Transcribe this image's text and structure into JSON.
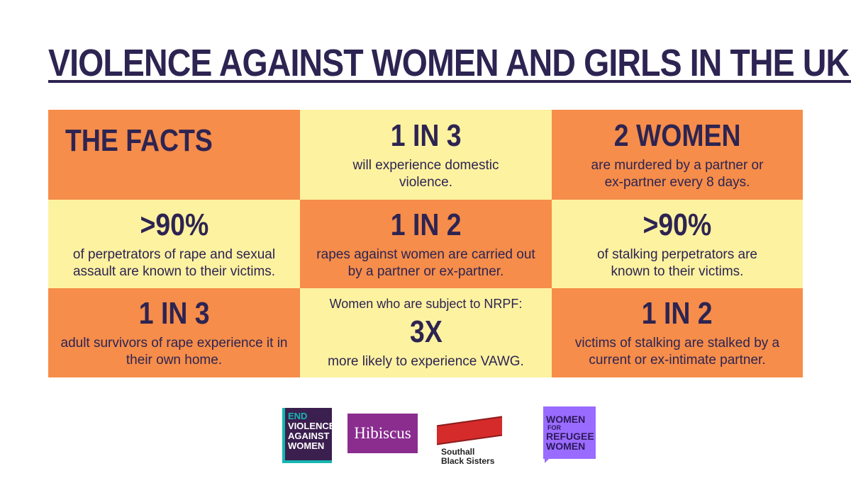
{
  "title": "VIOLENCE AGAINST WOMEN AND GIRLS  IN THE UK:",
  "facts": [
    {
      "big": "THE FACTS",
      "desc": ""
    },
    {
      "big": "1 IN 3",
      "desc": "will experience domestic violence."
    },
    {
      "big": "2 WOMEN",
      "desc": "are murdered by a partner or ex-partner every 8 days."
    },
    {
      "big": ">90%",
      "desc": "of perpetrators of rape and sexual assault are known to their victims."
    },
    {
      "big": "1 IN 2",
      "desc": "rapes against women are carried out by a partner or ex-partner."
    },
    {
      "big": ">90%",
      "desc": "of stalking perpetrators are known to their victims."
    },
    {
      "big": "1 IN 3",
      "desc": "adult survivors of rape experience it in their own home."
    },
    {
      "pre": "Women who are subject to NRPF:",
      "big": "3X",
      "desc": "more likely to experience VAWG."
    },
    {
      "big": "1 IN 2",
      "desc": "victims of stalking are stalked by a current or ex-intimate partner."
    }
  ],
  "logos": {
    "evaw": [
      "END",
      "VIOLENCE",
      "AGAINST",
      "WOMEN"
    ],
    "hibiscus": "Hibiscus",
    "sbs": [
      "Southall",
      "Black Sisters"
    ],
    "wfrw": [
      "WOMEN",
      "FOR",
      "REFUGEE",
      "WOMEN"
    ]
  },
  "colors": {
    "orange": "#f68d4a",
    "yellow": "#fdf2a0",
    "navy": "#2d2452"
  }
}
